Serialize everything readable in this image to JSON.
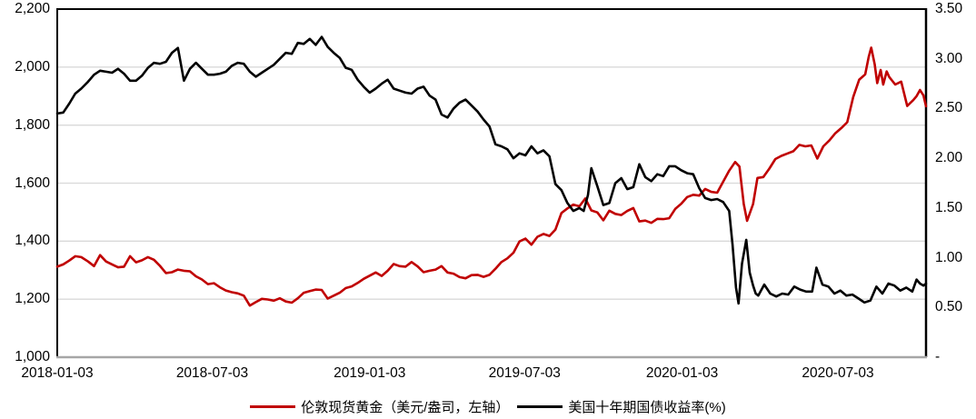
{
  "colors": {
    "background": "#FFFFFF",
    "gold_series": "#C00000",
    "yield_series": "#000000",
    "gridline": "#D9D9D9",
    "plot_border": "#000000",
    "x_axis_line": "#A6A6A6",
    "tick_text": "#000000"
  },
  "chart_data": {
    "type": "line",
    "title": "",
    "grid": "horizontal",
    "legend_position": "bottom",
    "x_tick_labels": [
      {
        "day": 0,
        "label": "2018-01-03"
      },
      {
        "day": 181,
        "label": "2018-07-03"
      },
      {
        "day": 365,
        "label": "2019-01-03"
      },
      {
        "day": 546,
        "label": "2019-07-03"
      },
      {
        "day": 730,
        "label": "2020-01-03"
      },
      {
        "day": 912,
        "label": "2020-07-03"
      }
    ],
    "x_range_days": [
      0,
      1015
    ],
    "left_axis": {
      "min": 1000,
      "max": 2200,
      "tick_values": [
        2200,
        2000,
        1800,
        1600,
        1400,
        1200,
        1000
      ],
      "tick_labels": [
        "2,200",
        "2,000",
        "1,800",
        "1,600",
        "1,400",
        "1,200",
        "1,000"
      ],
      "gridline_values": [
        2000,
        1800,
        1600,
        1400,
        1200
      ]
    },
    "right_axis": {
      "min": 0,
      "max": 3.5,
      "tick_values": [
        3.5,
        3.0,
        2.5,
        2.0,
        1.5,
        1.0,
        0.5,
        0
      ],
      "tick_labels": [
        "3.50",
        "3.00",
        "2.50",
        "2.00",
        "1.50",
        "1.00",
        "0.50",
        "-"
      ]
    },
    "series": [
      {
        "name": "伦敦现货黄金（美元/盎司，左轴）",
        "color": "#C00000",
        "axis": "left",
        "points": [
          [
            0,
            1312
          ],
          [
            7,
            1320
          ],
          [
            14,
            1333
          ],
          [
            21,
            1348
          ],
          [
            28,
            1345
          ],
          [
            36,
            1330
          ],
          [
            43,
            1314
          ],
          [
            50,
            1352
          ],
          [
            57,
            1330
          ],
          [
            64,
            1320
          ],
          [
            71,
            1310
          ],
          [
            78,
            1312
          ],
          [
            85,
            1348
          ],
          [
            92,
            1327
          ],
          [
            99,
            1334
          ],
          [
            106,
            1345
          ],
          [
            113,
            1336
          ],
          [
            120,
            1315
          ],
          [
            127,
            1290
          ],
          [
            134,
            1293
          ],
          [
            141,
            1302
          ],
          [
            148,
            1298
          ],
          [
            155,
            1296
          ],
          [
            162,
            1279
          ],
          [
            169,
            1268
          ],
          [
            176,
            1252
          ],
          [
            183,
            1255
          ],
          [
            190,
            1241
          ],
          [
            197,
            1230
          ],
          [
            204,
            1224
          ],
          [
            211,
            1220
          ],
          [
            218,
            1212
          ],
          [
            225,
            1178
          ],
          [
            232,
            1190
          ],
          [
            239,
            1201
          ],
          [
            246,
            1199
          ],
          [
            253,
            1195
          ],
          [
            260,
            1203
          ],
          [
            267,
            1192
          ],
          [
            274,
            1188
          ],
          [
            281,
            1203
          ],
          [
            288,
            1222
          ],
          [
            295,
            1228
          ],
          [
            302,
            1233
          ],
          [
            309,
            1232
          ],
          [
            316,
            1202
          ],
          [
            323,
            1212
          ],
          [
            330,
            1222
          ],
          [
            337,
            1238
          ],
          [
            344,
            1244
          ],
          [
            351,
            1256
          ],
          [
            358,
            1270
          ],
          [
            365,
            1281
          ],
          [
            372,
            1292
          ],
          [
            379,
            1280
          ],
          [
            386,
            1298
          ],
          [
            393,
            1321
          ],
          [
            400,
            1314
          ],
          [
            407,
            1312
          ],
          [
            414,
            1328
          ],
          [
            421,
            1313
          ],
          [
            428,
            1293
          ],
          [
            435,
            1298
          ],
          [
            442,
            1302
          ],
          [
            449,
            1314
          ],
          [
            456,
            1292
          ],
          [
            463,
            1288
          ],
          [
            470,
            1276
          ],
          [
            477,
            1272
          ],
          [
            484,
            1283
          ],
          [
            491,
            1284
          ],
          [
            498,
            1277
          ],
          [
            505,
            1284
          ],
          [
            512,
            1305
          ],
          [
            519,
            1328
          ],
          [
            526,
            1341
          ],
          [
            533,
            1360
          ],
          [
            540,
            1399
          ],
          [
            547,
            1409
          ],
          [
            554,
            1388
          ],
          [
            561,
            1415
          ],
          [
            568,
            1425
          ],
          [
            575,
            1418
          ],
          [
            582,
            1440
          ],
          [
            589,
            1497
          ],
          [
            596,
            1513
          ],
          [
            603,
            1526
          ],
          [
            610,
            1520
          ],
          [
            617,
            1547
          ],
          [
            624,
            1506
          ],
          [
            631,
            1499
          ],
          [
            638,
            1472
          ],
          [
            645,
            1505
          ],
          [
            652,
            1494
          ],
          [
            659,
            1490
          ],
          [
            666,
            1504
          ],
          [
            673,
            1514
          ],
          [
            680,
            1468
          ],
          [
            687,
            1471
          ],
          [
            694,
            1463
          ],
          [
            701,
            1477
          ],
          [
            708,
            1476
          ],
          [
            715,
            1479
          ],
          [
            722,
            1511
          ],
          [
            729,
            1529
          ],
          [
            736,
            1552
          ],
          [
            743,
            1560
          ],
          [
            750,
            1557
          ],
          [
            757,
            1580
          ],
          [
            764,
            1570
          ],
          [
            771,
            1567
          ],
          [
            778,
            1605
          ],
          [
            785,
            1643
          ],
          [
            792,
            1673
          ],
          [
            797,
            1657
          ],
          [
            802,
            1529
          ],
          [
            806,
            1470
          ],
          [
            813,
            1528
          ],
          [
            818,
            1618
          ],
          [
            825,
            1621
          ],
          [
            832,
            1650
          ],
          [
            839,
            1683
          ],
          [
            846,
            1694
          ],
          [
            853,
            1702
          ],
          [
            860,
            1710
          ],
          [
            867,
            1732
          ],
          [
            874,
            1727
          ],
          [
            881,
            1730
          ],
          [
            888,
            1685
          ],
          [
            895,
            1727
          ],
          [
            902,
            1747
          ],
          [
            909,
            1772
          ],
          [
            916,
            1790
          ],
          [
            923,
            1810
          ],
          [
            930,
            1897
          ],
          [
            937,
            1957
          ],
          [
            944,
            1975
          ],
          [
            948,
            2035
          ],
          [
            951,
            2067
          ],
          [
            955,
            2010
          ],
          [
            958,
            1945
          ],
          [
            962,
            1990
          ],
          [
            965,
            1940
          ],
          [
            969,
            1985
          ],
          [
            972,
            1966
          ],
          [
            979,
            1940
          ],
          [
            986,
            1950
          ],
          [
            993,
            1866
          ],
          [
            1000,
            1886
          ],
          [
            1004,
            1900
          ],
          [
            1008,
            1921
          ],
          [
            1012,
            1902
          ],
          [
            1015,
            1865
          ]
        ]
      },
      {
        "name": "美国十年期国债收益率(%)",
        "color": "#000000",
        "axis": "right",
        "points": [
          [
            0,
            2.45
          ],
          [
            7,
            2.46
          ],
          [
            14,
            2.55
          ],
          [
            21,
            2.65
          ],
          [
            28,
            2.7
          ],
          [
            36,
            2.77
          ],
          [
            43,
            2.84
          ],
          [
            50,
            2.88
          ],
          [
            57,
            2.87
          ],
          [
            64,
            2.86
          ],
          [
            71,
            2.9
          ],
          [
            78,
            2.85
          ],
          [
            85,
            2.78
          ],
          [
            92,
            2.78
          ],
          [
            99,
            2.83
          ],
          [
            106,
            2.91
          ],
          [
            113,
            2.96
          ],
          [
            120,
            2.95
          ],
          [
            127,
            2.97
          ],
          [
            134,
            3.06
          ],
          [
            141,
            3.11
          ],
          [
            148,
            2.78
          ],
          [
            155,
            2.9
          ],
          [
            162,
            2.96
          ],
          [
            169,
            2.9
          ],
          [
            176,
            2.84
          ],
          [
            183,
            2.84
          ],
          [
            190,
            2.85
          ],
          [
            197,
            2.87
          ],
          [
            204,
            2.93
          ],
          [
            211,
            2.96
          ],
          [
            218,
            2.95
          ],
          [
            225,
            2.87
          ],
          [
            232,
            2.82
          ],
          [
            239,
            2.86
          ],
          [
            246,
            2.9
          ],
          [
            253,
            2.94
          ],
          [
            260,
            3.0
          ],
          [
            267,
            3.06
          ],
          [
            274,
            3.05
          ],
          [
            281,
            3.16
          ],
          [
            288,
            3.15
          ],
          [
            295,
            3.2
          ],
          [
            302,
            3.14
          ],
          [
            309,
            3.22
          ],
          [
            316,
            3.12
          ],
          [
            323,
            3.06
          ],
          [
            330,
            3.01
          ],
          [
            337,
            2.91
          ],
          [
            344,
            2.89
          ],
          [
            351,
            2.79
          ],
          [
            358,
            2.72
          ],
          [
            365,
            2.66
          ],
          [
            372,
            2.7
          ],
          [
            379,
            2.75
          ],
          [
            386,
            2.79
          ],
          [
            393,
            2.7
          ],
          [
            400,
            2.68
          ],
          [
            407,
            2.66
          ],
          [
            414,
            2.65
          ],
          [
            421,
            2.7
          ],
          [
            428,
            2.72
          ],
          [
            435,
            2.63
          ],
          [
            442,
            2.59
          ],
          [
            449,
            2.44
          ],
          [
            456,
            2.41
          ],
          [
            463,
            2.5
          ],
          [
            470,
            2.56
          ],
          [
            477,
            2.59
          ],
          [
            484,
            2.53
          ],
          [
            491,
            2.47
          ],
          [
            498,
            2.39
          ],
          [
            505,
            2.32
          ],
          [
            512,
            2.14
          ],
          [
            519,
            2.12
          ],
          [
            526,
            2.09
          ],
          [
            533,
            2.0
          ],
          [
            540,
            2.05
          ],
          [
            547,
            2.03
          ],
          [
            554,
            2.12
          ],
          [
            561,
            2.05
          ],
          [
            568,
            2.08
          ],
          [
            575,
            2.02
          ],
          [
            582,
            1.74
          ],
          [
            589,
            1.68
          ],
          [
            596,
            1.55
          ],
          [
            603,
            1.47
          ],
          [
            610,
            1.5
          ],
          [
            615,
            1.47
          ],
          [
            620,
            1.63
          ],
          [
            624,
            1.9
          ],
          [
            631,
            1.72
          ],
          [
            638,
            1.53
          ],
          [
            645,
            1.55
          ],
          [
            652,
            1.75
          ],
          [
            659,
            1.8
          ],
          [
            666,
            1.69
          ],
          [
            673,
            1.71
          ],
          [
            680,
            1.94
          ],
          [
            687,
            1.81
          ],
          [
            694,
            1.77
          ],
          [
            701,
            1.84
          ],
          [
            708,
            1.82
          ],
          [
            715,
            1.92
          ],
          [
            722,
            1.92
          ],
          [
            729,
            1.88
          ],
          [
            736,
            1.85
          ],
          [
            743,
            1.84
          ],
          [
            750,
            1.7
          ],
          [
            757,
            1.6
          ],
          [
            764,
            1.58
          ],
          [
            771,
            1.59
          ],
          [
            778,
            1.56
          ],
          [
            785,
            1.47
          ],
          [
            789,
            1.13
          ],
          [
            793,
            0.7
          ],
          [
            796,
            0.54
          ],
          [
            800,
            0.94
          ],
          [
            805,
            1.18
          ],
          [
            809,
            0.85
          ],
          [
            813,
            0.72
          ],
          [
            816,
            0.64
          ],
          [
            819,
            0.62
          ],
          [
            826,
            0.73
          ],
          [
            833,
            0.64
          ],
          [
            840,
            0.61
          ],
          [
            847,
            0.64
          ],
          [
            854,
            0.63
          ],
          [
            861,
            0.71
          ],
          [
            868,
            0.68
          ],
          [
            875,
            0.66
          ],
          [
            882,
            0.66
          ],
          [
            887,
            0.9
          ],
          [
            894,
            0.73
          ],
          [
            901,
            0.71
          ],
          [
            908,
            0.64
          ],
          [
            915,
            0.67
          ],
          [
            922,
            0.62
          ],
          [
            929,
            0.63
          ],
          [
            936,
            0.59
          ],
          [
            943,
            0.55
          ],
          [
            950,
            0.57
          ],
          [
            957,
            0.71
          ],
          [
            964,
            0.64
          ],
          [
            971,
            0.74
          ],
          [
            978,
            0.72
          ],
          [
            985,
            0.67
          ],
          [
            992,
            0.7
          ],
          [
            999,
            0.66
          ],
          [
            1004,
            0.78
          ],
          [
            1008,
            0.74
          ],
          [
            1012,
            0.72
          ],
          [
            1015,
            0.74
          ]
        ]
      }
    ]
  }
}
